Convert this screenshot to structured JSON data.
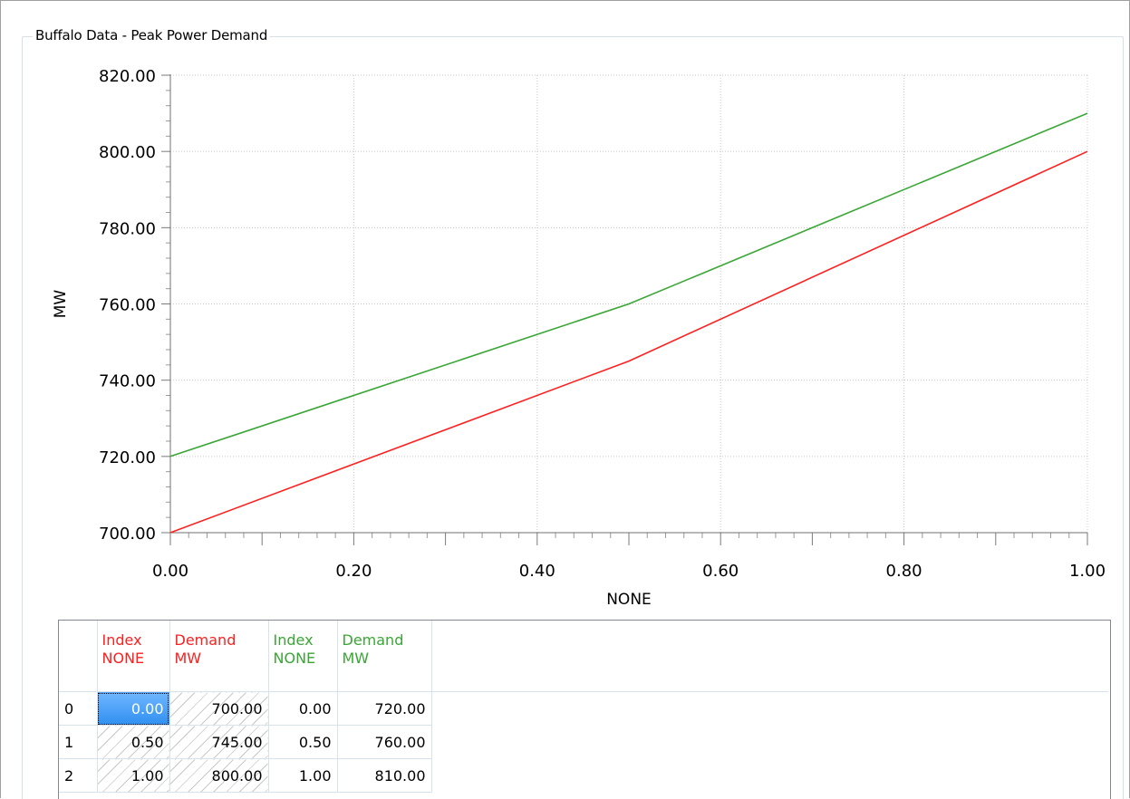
{
  "group_title": "Buffalo Data - Peak Power Demand",
  "chart_data": {
    "type": "line",
    "title": "Buffalo Data - Peak Power Demand",
    "xlabel": "NONE",
    "ylabel": "MW",
    "xlim": [
      0,
      1
    ],
    "ylim": [
      700,
      820
    ],
    "x_ticks": [
      "0.00",
      "0.20",
      "0.40",
      "0.60",
      "0.80",
      "1.00"
    ],
    "y_ticks": [
      "700.00",
      "720.00",
      "740.00",
      "760.00",
      "780.00",
      "800.00",
      "820.00"
    ],
    "grid": true,
    "series": [
      {
        "x": [
          0.0,
          0.5,
          1.0
        ],
        "values": [
          700,
          745,
          800
        ],
        "color": "#ff2020"
      },
      {
        "x": [
          0.0,
          0.5,
          1.0
        ],
        "values": [
          720,
          760,
          810
        ],
        "color": "#3aa636"
      }
    ]
  },
  "table": {
    "headers": [
      {
        "line1": "Index",
        "line2": "NONE",
        "color": "red"
      },
      {
        "line1": "Demand",
        "line2": "MW",
        "color": "red"
      },
      {
        "line1": "Index",
        "line2": "NONE",
        "color": "green"
      },
      {
        "line1": "Demand",
        "line2": "MW",
        "color": "green"
      }
    ],
    "rows": [
      {
        "row_label": "0",
        "cells": [
          "0.00",
          "700.00",
          "0.00",
          "720.00"
        ]
      },
      {
        "row_label": "1",
        "cells": [
          "0.50",
          "745.00",
          "0.50",
          "760.00"
        ]
      },
      {
        "row_label": "2",
        "cells": [
          "1.00",
          "800.00",
          "1.00",
          "810.00"
        ]
      }
    ],
    "selected_cell": {
      "row": 0,
      "col": 0
    }
  }
}
